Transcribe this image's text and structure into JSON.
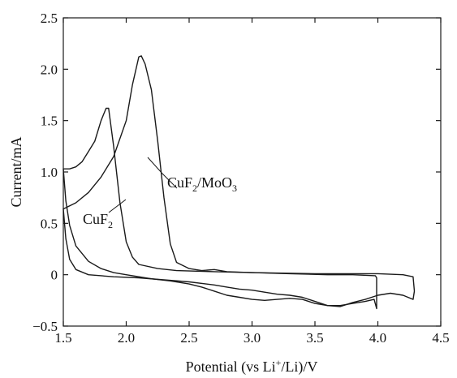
{
  "chart_data": {
    "type": "line",
    "title": "",
    "xlabel": {
      "pre": "Potential (vs Li",
      "sup": "+",
      "post": "/Li)/V"
    },
    "ylabel": "Current/mA",
    "xlim": [
      1.5,
      4.5
    ],
    "ylim": [
      -0.5,
      2.5
    ],
    "xticks": [
      1.5,
      2.0,
      2.5,
      3.0,
      3.5,
      4.0,
      4.5
    ],
    "xtick_labels": [
      "1.5",
      "2.0",
      "2.5",
      "3.0",
      "3.5",
      "4.0",
      "4.5"
    ],
    "yticks": [
      -0.5,
      0,
      0.5,
      1.0,
      1.5,
      2.0,
      2.5
    ],
    "ytick_labels": [
      "−0.5",
      "0",
      "0.5",
      "1.0",
      "1.5",
      "2.0",
      "2.5"
    ],
    "grid": false,
    "legend": "none",
    "series": [
      {
        "label_main": "CuF",
        "label_sub": "2",
        "points": [
          [
            1.5,
            1.03
          ],
          [
            1.52,
            0.72
          ],
          [
            1.55,
            0.48
          ],
          [
            1.6,
            0.28
          ],
          [
            1.7,
            0.13
          ],
          [
            1.8,
            0.06
          ],
          [
            1.9,
            0.02
          ],
          [
            2.0,
            0.0
          ],
          [
            2.1,
            -0.02
          ],
          [
            2.2,
            -0.04
          ],
          [
            2.35,
            -0.06
          ],
          [
            2.5,
            -0.09
          ],
          [
            2.6,
            -0.12
          ],
          [
            2.7,
            -0.16
          ],
          [
            2.8,
            -0.2
          ],
          [
            2.9,
            -0.22
          ],
          [
            3.0,
            -0.24
          ],
          [
            3.1,
            -0.25
          ],
          [
            3.2,
            -0.24
          ],
          [
            3.3,
            -0.23
          ],
          [
            3.4,
            -0.24
          ],
          [
            3.5,
            -0.28
          ],
          [
            3.6,
            -0.3
          ],
          [
            3.7,
            -0.3
          ],
          [
            3.8,
            -0.28
          ],
          [
            3.9,
            -0.26
          ],
          [
            3.97,
            -0.24
          ],
          [
            3.99,
            -0.33
          ],
          [
            3.99,
            -0.03
          ],
          [
            3.98,
            -0.01
          ],
          [
            3.8,
            -0.0
          ],
          [
            3.6,
            0.0
          ],
          [
            3.3,
            0.01
          ],
          [
            3.0,
            0.02
          ],
          [
            2.7,
            0.03
          ],
          [
            2.4,
            0.04
          ],
          [
            2.25,
            0.06
          ],
          [
            2.1,
            0.1
          ],
          [
            2.05,
            0.17
          ],
          [
            2.0,
            0.32
          ],
          [
            1.95,
            0.7
          ],
          [
            1.9,
            1.25
          ],
          [
            1.86,
            1.62
          ],
          [
            1.84,
            1.62
          ],
          [
            1.8,
            1.5
          ],
          [
            1.75,
            1.3
          ],
          [
            1.7,
            1.2
          ],
          [
            1.65,
            1.1
          ],
          [
            1.6,
            1.05
          ],
          [
            1.55,
            1.03
          ],
          [
            1.5,
            1.03
          ]
        ]
      },
      {
        "label_main": "CuF",
        "label_sub": "2",
        "label_main2": "/MoO",
        "label_sub2": "3",
        "points": [
          [
            1.5,
            0.64
          ],
          [
            1.6,
            0.7
          ],
          [
            1.7,
            0.8
          ],
          [
            1.8,
            0.95
          ],
          [
            1.9,
            1.15
          ],
          [
            2.0,
            1.5
          ],
          [
            2.05,
            1.85
          ],
          [
            2.1,
            2.12
          ],
          [
            2.12,
            2.13
          ],
          [
            2.15,
            2.05
          ],
          [
            2.2,
            1.8
          ],
          [
            2.25,
            1.3
          ],
          [
            2.3,
            0.75
          ],
          [
            2.35,
            0.3
          ],
          [
            2.4,
            0.12
          ],
          [
            2.5,
            0.06
          ],
          [
            2.6,
            0.04
          ],
          [
            2.7,
            0.05
          ],
          [
            2.8,
            0.03
          ],
          [
            3.0,
            0.02
          ],
          [
            3.5,
            0.01
          ],
          [
            4.0,
            0.01
          ],
          [
            4.2,
            0.0
          ],
          [
            4.28,
            -0.02
          ],
          [
            4.29,
            -0.16
          ],
          [
            4.28,
            -0.24
          ],
          [
            4.2,
            -0.2
          ],
          [
            4.1,
            -0.18
          ],
          [
            4.0,
            -0.2
          ],
          [
            3.9,
            -0.24
          ],
          [
            3.8,
            -0.27
          ],
          [
            3.7,
            -0.31
          ],
          [
            3.6,
            -0.3
          ],
          [
            3.5,
            -0.26
          ],
          [
            3.4,
            -0.22
          ],
          [
            3.3,
            -0.2
          ],
          [
            3.2,
            -0.19
          ],
          [
            3.1,
            -0.17
          ],
          [
            3.0,
            -0.15
          ],
          [
            2.9,
            -0.14
          ],
          [
            2.8,
            -0.12
          ],
          [
            2.7,
            -0.1
          ],
          [
            2.5,
            -0.07
          ],
          [
            2.3,
            -0.05
          ],
          [
            2.1,
            -0.03
          ],
          [
            1.9,
            -0.02
          ],
          [
            1.7,
            -0.0
          ],
          [
            1.6,
            0.05
          ],
          [
            1.55,
            0.15
          ],
          [
            1.52,
            0.35
          ],
          [
            1.5,
            0.64
          ]
        ]
      }
    ]
  }
}
